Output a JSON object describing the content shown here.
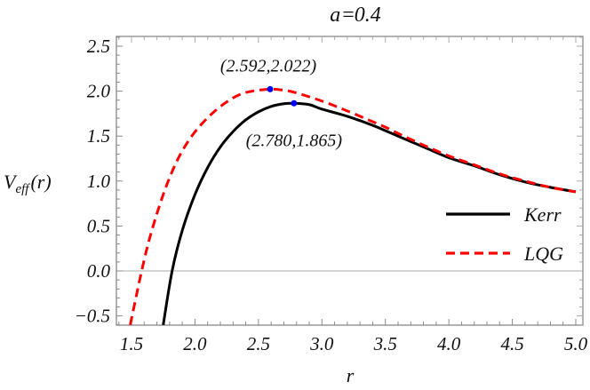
{
  "chart_data": {
    "type": "line",
    "title": "a=0.4",
    "xlabel": "r",
    "ylabel": "V_eff(r)",
    "ylabel_main": "V",
    "ylabel_sub": "eff",
    "ylabel_arg": "(r)",
    "xlim": [
      1.37,
      5.06
    ],
    "ylim": [
      -0.6,
      2.61
    ],
    "xticks": [
      1.5,
      2.0,
      2.5,
      3.0,
      3.5,
      4.0,
      4.5,
      5.0
    ],
    "xtick_labels": [
      "1.5",
      "2.0",
      "2.5",
      "3.0",
      "3.5",
      "4.0",
      "4.5",
      "5.0"
    ],
    "yticks": [
      -0.5,
      0.0,
      0.5,
      1.0,
      1.5,
      2.0,
      2.5
    ],
    "ytick_labels": [
      "−0.5",
      "0.0",
      "0.5",
      "1.0",
      "1.5",
      "2.0",
      "2.5"
    ],
    "grid": false,
    "legend_position": "right",
    "series": [
      {
        "name": "Kerr",
        "color": "#000000",
        "style": "solid",
        "x": [
          1.75,
          1.82,
          1.9,
          2.0,
          2.1,
          2.2,
          2.3,
          2.4,
          2.5,
          2.6,
          2.7,
          2.78,
          2.9,
          3.0,
          3.2,
          3.4,
          3.5,
          3.6,
          3.8,
          4.0,
          4.2,
          4.4,
          4.6,
          4.8,
          5.0
        ],
        "y": [
          -0.6,
          0.0,
          0.45,
          0.85,
          1.15,
          1.38,
          1.55,
          1.68,
          1.77,
          1.83,
          1.86,
          1.865,
          1.85,
          1.8,
          1.72,
          1.62,
          1.56,
          1.5,
          1.38,
          1.26,
          1.17,
          1.07,
          0.99,
          0.93,
          0.88
        ]
      },
      {
        "name": "LQG",
        "color": "#ff0000",
        "style": "dashed",
        "x": [
          1.49,
          1.58,
          1.65,
          1.75,
          1.85,
          1.95,
          2.05,
          2.15,
          2.25,
          2.35,
          2.45,
          2.592,
          2.7,
          2.8,
          3.0,
          3.2,
          3.4,
          3.5,
          3.6,
          3.8,
          4.0,
          4.2,
          4.4,
          4.6,
          4.8,
          5.0
        ],
        "y": [
          -0.6,
          0.0,
          0.4,
          0.85,
          1.2,
          1.45,
          1.63,
          1.77,
          1.88,
          1.96,
          2.0,
          2.022,
          2.01,
          1.98,
          1.89,
          1.78,
          1.66,
          1.6,
          1.53,
          1.4,
          1.28,
          1.18,
          1.08,
          1.0,
          0.93,
          0.88
        ]
      }
    ],
    "annotations": [
      {
        "text": "(2.592,2.022)",
        "x": 2.592,
        "y": 2.022,
        "marker_color": "#0000ff"
      },
      {
        "text": "(2.780,1.865)",
        "x": 2.78,
        "y": 1.865,
        "marker_color": "#0000ff"
      }
    ]
  }
}
